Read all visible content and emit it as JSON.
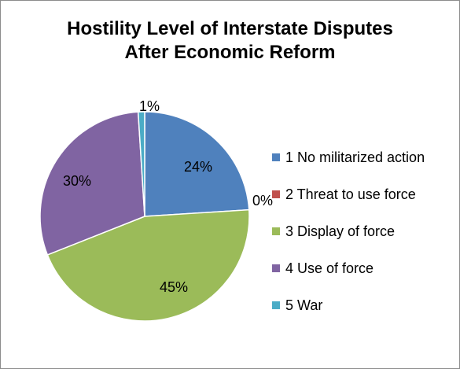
{
  "chart_data": {
    "type": "pie",
    "title_lines": [
      "Hostility Level of Interstate Disputes",
      "After Economic Reform"
    ],
    "categories": [
      "1 No militarized action",
      "2 Threat to use force",
      "3 Display of force",
      "4 Use of force",
      "5 War"
    ],
    "values": [
      24,
      0,
      45,
      30,
      1
    ],
    "labels": [
      "24%",
      "0%",
      "45%",
      "30%",
      "1%"
    ],
    "colors": [
      "#4f81bd",
      "#c0504d",
      "#9bbb59",
      "#8064a2",
      "#4bacc6"
    ],
    "legend_position": "right"
  }
}
